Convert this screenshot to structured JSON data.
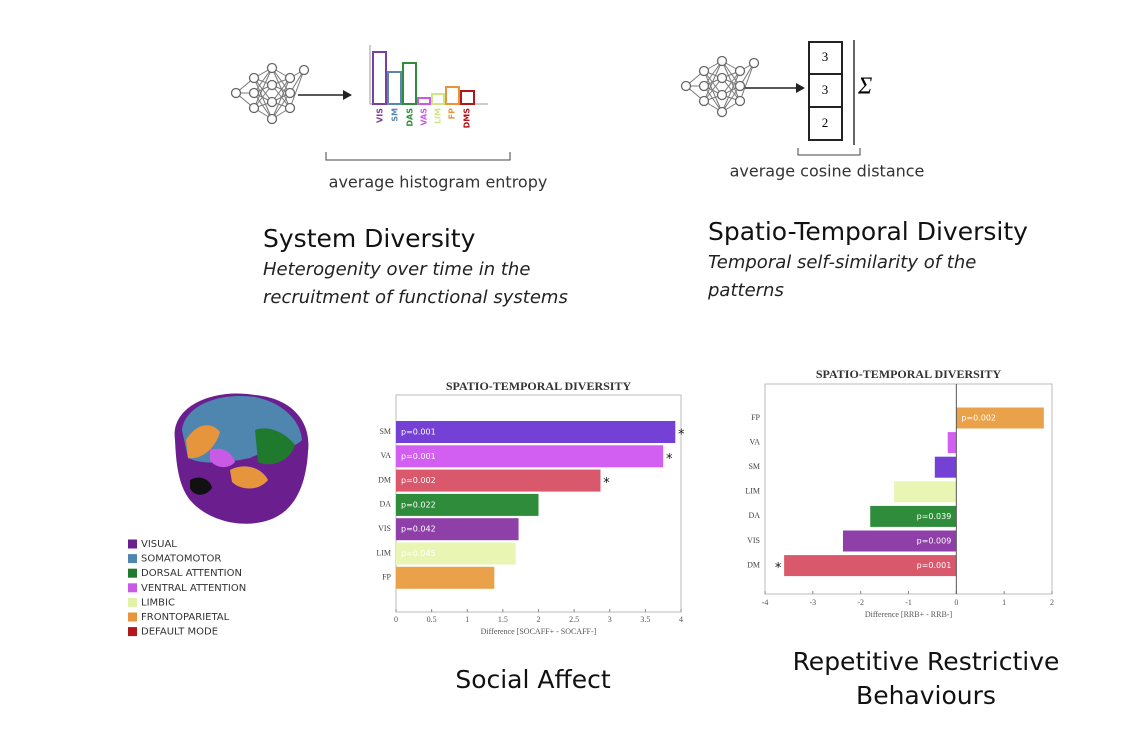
{
  "system_diagram": {
    "bar_labels": [
      "VIS",
      "SM",
      "DAS",
      "VAS",
      "LIM",
      "FP",
      "DMS"
    ],
    "caption": "average histogram entropy",
    "title": "System Diversity",
    "subtitle_lines": [
      "Heterogenity over time in the",
      "recruitment of functional systems"
    ]
  },
  "spatio_diagram": {
    "cells": [
      "3",
      "3",
      "2"
    ],
    "symbol": "Σ",
    "caption": "average cosine distance",
    "title": "Spatio-Temporal Diversity",
    "subtitle_lines": [
      "Temporal self-similarity of the",
      "patterns"
    ]
  },
  "legend": {
    "items": [
      {
        "label": "VISUAL",
        "color": "#6b1f8f"
      },
      {
        "label": "SOMATOMOTOR",
        "color": "#4f86b0"
      },
      {
        "label": "DORSAL ATTENTION",
        "color": "#1f7a2e"
      },
      {
        "label": "VENTRAL ATTENTION",
        "color": "#c95ae6"
      },
      {
        "label": "LIMBIC",
        "color": "#dff2a8"
      },
      {
        "label": "FRONTOPARIETAL",
        "color": "#e6953c"
      },
      {
        "label": "DEFAULT MODE",
        "color": "#b3161d"
      }
    ]
  },
  "panel_titles": {
    "left": "Social Affect",
    "right_lines": [
      "Repetitive Restrictive",
      "Behaviours"
    ]
  },
  "chart_data": [
    {
      "type": "bar",
      "orientation": "horizontal",
      "title": "SPATIO-TEMPORAL DIVERSITY",
      "xlabel": "Difference [SOCAFF+ - SOCAFF-]",
      "categories": [
        "SM",
        "VA",
        "DM",
        "DA",
        "VIS",
        "LIM",
        "FP"
      ],
      "values": [
        3.92,
        3.75,
        2.87,
        2.0,
        1.72,
        1.68,
        1.38
      ],
      "value_labels": [
        "p=0.001",
        "p=0.001",
        "p=0.002",
        "p=0.022",
        "p=0.042",
        "p=0.045",
        null
      ],
      "annotations": [
        "*",
        "*",
        "*",
        null,
        null,
        null,
        null
      ],
      "colors": [
        "#7440d6",
        "#d35ef2",
        "#d9586c",
        "#2f8c3b",
        "#8e3fa8",
        "#e9f6b3",
        "#e9a24a"
      ],
      "xlim": [
        0,
        4
      ],
      "xticks": [
        0,
        0.5,
        1,
        1.5,
        2,
        2.5,
        3,
        3.5,
        4
      ]
    },
    {
      "type": "bar",
      "orientation": "horizontal",
      "title": "SPATIO-TEMPORAL DIVERSITY",
      "xlabel": "Difference [RRB+ - RRB-]",
      "categories": [
        "FP",
        "VA",
        "SM",
        "LIM",
        "DA",
        "VIS",
        "DM"
      ],
      "values": [
        1.83,
        -0.18,
        -0.45,
        -1.3,
        -1.8,
        -2.37,
        -3.6
      ],
      "value_labels": [
        "p=0.002",
        null,
        null,
        null,
        "p=0.039",
        "p=0.009",
        "p=0.001"
      ],
      "annotations": [
        null,
        null,
        null,
        null,
        null,
        null,
        "*"
      ],
      "colors": [
        "#e9a24a",
        "#d35ef2",
        "#7440d6",
        "#e9f6b3",
        "#2f8c3b",
        "#8e3fa8",
        "#d9586c"
      ],
      "xlim": [
        -4,
        2
      ],
      "xticks": [
        -4,
        -3,
        -2,
        -1,
        0,
        1,
        2
      ]
    }
  ]
}
